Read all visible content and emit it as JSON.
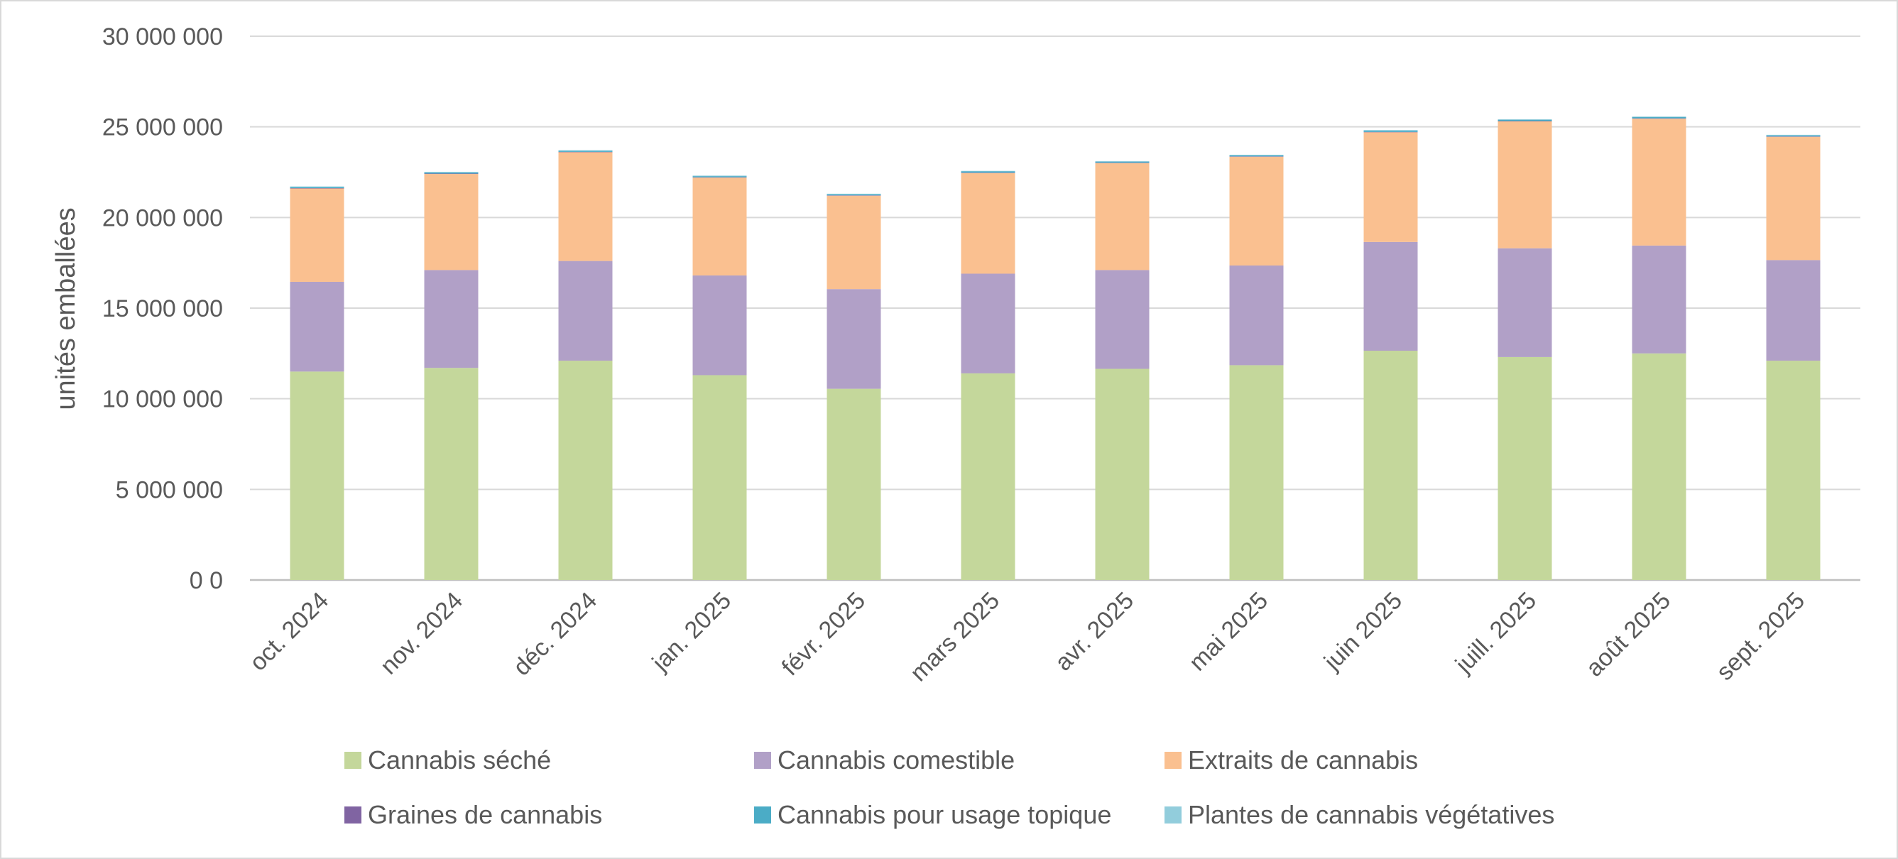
{
  "chart_data": {
    "type": "bar",
    "stacked": true,
    "title": "",
    "ylabel": "unités emballées",
    "xlabel": "",
    "ylim": [
      0,
      30000000
    ],
    "yticks": [
      0,
      5000000,
      10000000,
      15000000,
      20000000,
      25000000,
      30000000
    ],
    "ytick_labels": [
      "0 0",
      "5 000 000",
      "10 000 000",
      "15 000 000",
      "20 000 000",
      "25 000 000",
      "30 000 000"
    ],
    "grid": true,
    "legend_position": "bottom",
    "categories": [
      "oct. 2024",
      "nov. 2024",
      "déc. 2024",
      "jan. 2025",
      "févr. 2025",
      "mars 2025",
      "avr. 2025",
      "mai 2025",
      "juin 2025",
      "juill. 2025",
      "août 2025",
      "sept. 2025"
    ],
    "series": [
      {
        "name": "Cannabis séché",
        "color": "#c4d79b",
        "values": [
          11500000,
          11700000,
          12100000,
          11300000,
          10550000,
          11400000,
          11650000,
          11850000,
          12650000,
          12300000,
          12500000,
          12100000
        ]
      },
      {
        "name": "Cannabis comestible",
        "color": "#b1a0c7",
        "values": [
          4950000,
          5400000,
          5500000,
          5500000,
          5500000,
          5500000,
          5450000,
          5500000,
          6000000,
          6000000,
          5950000,
          5550000
        ]
      },
      {
        "name": "Extraits de cannabis",
        "color": "#fac090",
        "values": [
          5150000,
          5300000,
          6000000,
          5400000,
          5150000,
          5550000,
          5900000,
          6000000,
          6050000,
          7000000,
          7000000,
          6800000
        ]
      },
      {
        "name": "Graines de cannabis",
        "color": "#8064a2",
        "values": [
          20000,
          20000,
          20000,
          20000,
          20000,
          20000,
          20000,
          20000,
          20000,
          20000,
          20000,
          20000
        ]
      },
      {
        "name": "Cannabis pour usage topique",
        "color": "#4bacc6",
        "values": [
          60000,
          60000,
          60000,
          60000,
          60000,
          70000,
          60000,
          60000,
          70000,
          70000,
          70000,
          60000
        ]
      },
      {
        "name": "Plantes de cannabis végétatives",
        "color": "#92cddc",
        "values": [
          30000,
          30000,
          30000,
          30000,
          30000,
          30000,
          30000,
          30000,
          30000,
          30000,
          30000,
          30000
        ]
      }
    ]
  }
}
